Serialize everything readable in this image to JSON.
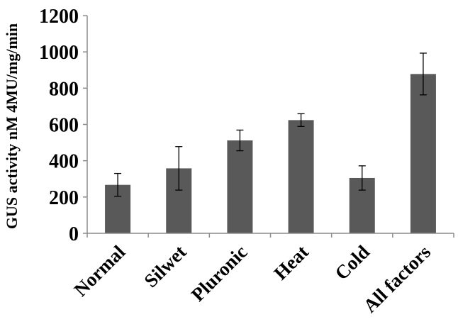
{
  "chart_data": {
    "type": "bar",
    "title": "",
    "xlabel": "",
    "ylabel": "GUS activity nM 4MU/mg/min",
    "ylim": [
      0,
      1200
    ],
    "yticks": [
      0,
      200,
      400,
      600,
      800,
      1000,
      1200
    ],
    "categories": [
      "Normal",
      "Silwet",
      "Pluronic",
      "Heat",
      "Cold",
      "All factors"
    ],
    "values": [
      267,
      358,
      512,
      624,
      305,
      878
    ],
    "errors": [
      63,
      120,
      57,
      35,
      67,
      115
    ],
    "grid": false,
    "bar_color": "#595959"
  }
}
